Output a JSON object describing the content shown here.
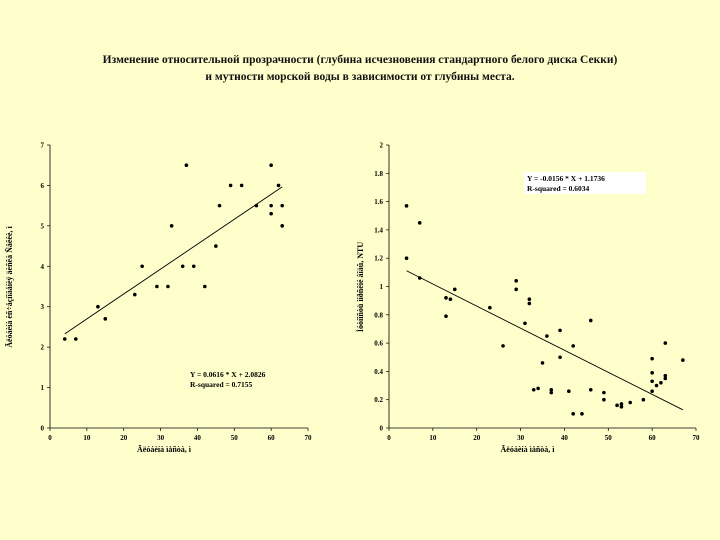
{
  "title": {
    "line1": "Изменение относительной прозрачности (глубина исчезновения стандартного белого диска Секки)",
    "line2": "и мутности морской воды в зависимости от глубины места."
  },
  "chart_data": [
    {
      "type": "scatter",
      "xlabel": "Ãëóáèíà ìåñòà, ì",
      "ylabel": "Ãëóáèíà èñ÷åçíîâåíèÿ äèñêà Ñåêêè, ì",
      "xlim": [
        0,
        70
      ],
      "ylim": [
        0,
        7
      ],
      "xticks": [
        0,
        10,
        20,
        30,
        40,
        50,
        60,
        70
      ],
      "yticks": [
        0,
        1,
        2,
        3,
        4,
        5,
        6,
        7
      ],
      "regression": {
        "slope": 0.0616,
        "intercept": 2.0826,
        "x_range": [
          4,
          63
        ]
      },
      "equation": "Y = 0.0616 * X + 2.0826",
      "r_squared": "R-squared = 0.7155",
      "points": [
        [
          4,
          2.2
        ],
        [
          7,
          2.2
        ],
        [
          13,
          3.0
        ],
        [
          15,
          2.7
        ],
        [
          23,
          3.3
        ],
        [
          25,
          4.0
        ],
        [
          29,
          3.5
        ],
        [
          32,
          3.5
        ],
        [
          33,
          5.0
        ],
        [
          36,
          4.0
        ],
        [
          37,
          6.5
        ],
        [
          39,
          4.0
        ],
        [
          42,
          3.5
        ],
        [
          45,
          4.5
        ],
        [
          46,
          5.5
        ],
        [
          49,
          6.0
        ],
        [
          52,
          6.0
        ],
        [
          56,
          5.5
        ],
        [
          60,
          6.5
        ],
        [
          60,
          5.5
        ],
        [
          60,
          5.3
        ],
        [
          62,
          6.0
        ],
        [
          63,
          5.5
        ],
        [
          63,
          5.0
        ]
      ]
    },
    {
      "type": "scatter",
      "xlabel": "Ãëóáèíà ìåñòà, ì",
      "ylabel": "Ìóòíîñòü ìîðñêîé âîäû, NTU",
      "xlim": [
        0,
        70
      ],
      "ylim": [
        0,
        2
      ],
      "xticks": [
        0,
        10,
        20,
        30,
        40,
        50,
        60,
        70
      ],
      "yticks": [
        0,
        0.2,
        0.4,
        0.6,
        0.8,
        1,
        1.2,
        1.4,
        1.6,
        1.8,
        2
      ],
      "regression": {
        "slope": -0.0156,
        "intercept": 1.1736,
        "x_range": [
          4,
          67
        ]
      },
      "equation": "Y = -0.0156 * X + 1.1736",
      "r_squared": "R-squared = 0.6034",
      "points": [
        [
          4,
          1.57
        ],
        [
          4,
          1.2
        ],
        [
          7,
          1.45
        ],
        [
          7,
          1.06
        ],
        [
          13,
          0.92
        ],
        [
          13,
          0.79
        ],
        [
          14,
          0.91
        ],
        [
          15,
          0.98
        ],
        [
          23,
          0.85
        ],
        [
          26,
          0.58
        ],
        [
          29,
          1.04
        ],
        [
          29,
          0.98
        ],
        [
          31,
          0.74
        ],
        [
          32,
          0.91
        ],
        [
          32,
          0.88
        ],
        [
          33,
          0.27
        ],
        [
          34,
          0.28
        ],
        [
          35,
          0.46
        ],
        [
          36,
          0.65
        ],
        [
          37,
          0.27
        ],
        [
          37,
          0.25
        ],
        [
          39,
          0.69
        ],
        [
          39,
          0.5
        ],
        [
          41,
          0.26
        ],
        [
          42,
          0.58
        ],
        [
          42,
          0.1
        ],
        [
          44,
          0.1
        ],
        [
          46,
          0.76
        ],
        [
          46,
          0.27
        ],
        [
          49,
          0.25
        ],
        [
          49,
          0.2
        ],
        [
          52,
          0.16
        ],
        [
          53,
          0.17
        ],
        [
          53,
          0.15
        ],
        [
          55,
          0.18
        ],
        [
          58,
          0.2
        ],
        [
          60,
          0.49
        ],
        [
          60,
          0.39
        ],
        [
          60,
          0.33
        ],
        [
          60,
          0.26
        ],
        [
          61,
          0.3
        ],
        [
          62,
          0.32
        ],
        [
          63,
          0.6
        ],
        [
          63,
          0.37
        ],
        [
          63,
          0.35
        ],
        [
          67,
          0.48
        ]
      ]
    }
  ]
}
